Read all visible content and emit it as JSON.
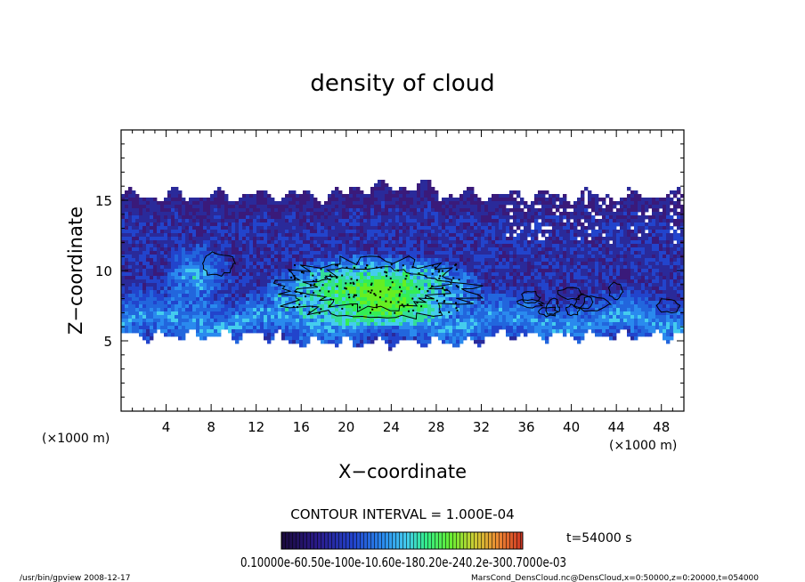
{
  "chart_data": {
    "type": "heatmap",
    "title": "density of cloud",
    "xlabel": "X−coordinate",
    "ylabel": "Z−coordinate",
    "x_unit_left": "(×1000 m)",
    "x_unit_right": "(×1000 m)",
    "xlim": [
      0,
      50
    ],
    "ylim": [
      0,
      20
    ],
    "x_ticks": [
      4,
      8,
      12,
      16,
      20,
      24,
      28,
      32,
      36,
      40,
      44,
      48
    ],
    "y_ticks": [
      5,
      10,
      15
    ],
    "x_tick_labels": [
      "4",
      "8",
      "12",
      "16",
      "20",
      "24",
      "28",
      "32",
      "36",
      "40",
      "44",
      "48"
    ],
    "y_tick_labels": [
      "5",
      "10",
      "15"
    ],
    "cloud_band_z": [
      5.5,
      15.5
    ],
    "core_region": {
      "x": [
        14,
        31
      ],
      "z": [
        6.5,
        11.0
      ]
    },
    "contour_interval": "CONTOUR INTERVAL = 1.000E-04",
    "time_label": "t=54000 s",
    "colorbar_labels": "0.10000e-60.50e-100e-10.60e-180.20e-240.2e-300.7000e-03",
    "colorbar_colors": [
      "#1a0a3a",
      "#2a1a8a",
      "#2244cc",
      "#2a8aee",
      "#44ccee",
      "#33ee88",
      "#66ee33",
      "#cccc33",
      "#ee8833",
      "#cc3322"
    ]
  },
  "footer": {
    "left": "/usr/bin/gpview  2008-12-17",
    "right": "MarsCond_DensCloud.nc@DensCloud,x=0:50000,z=0:20000,t=054000"
  }
}
